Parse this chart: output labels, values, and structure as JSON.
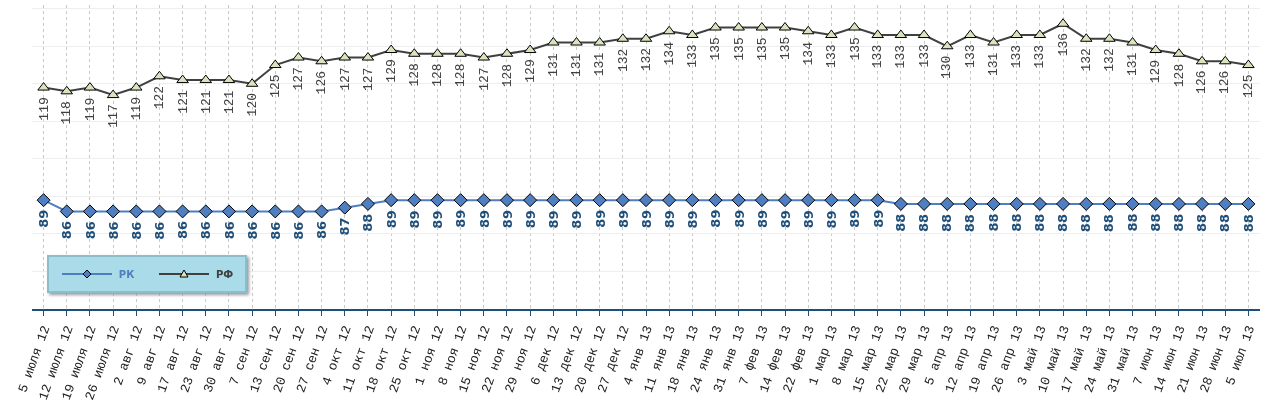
{
  "chart_data": {
    "type": "line",
    "categories": [
      "5 июля 12",
      "12 июля 12",
      "19 июля 12",
      "26 июля 12",
      "2 авг 12",
      "9 авг 12",
      "17 авг 12",
      "23 авг 12",
      "30 авг 12",
      "7 сен 12",
      "13 сен 12",
      "20 сен 12",
      "27 сен 12",
      "4 окт 12",
      "11 окт 12",
      "18 окт 12",
      "25 окт 12",
      "1 ноя 12",
      "8 ноя 12",
      "15 ноя 12",
      "22 ноя 12",
      "29 ноя 12",
      "6 дек 12",
      "13 дек 12",
      "20 дек 12",
      "27 дек 12",
      "4 янв 13",
      "11 янв 13",
      "18 янв 13",
      "24 янв 13",
      "31 янв 13",
      "7 фев 13",
      "14 фев 13",
      "22 фев 13",
      "1 мар 13",
      "8 мар 13",
      "15 мар 13",
      "22 мар 13",
      "29 мар 13",
      "5 апр 13",
      "12 апр 13",
      "19 апр 13",
      "26 апр 13",
      "3 май 13",
      "10 май 13",
      "17 май 13",
      "24 май 13",
      "31 май 13",
      "7 июн 13",
      "14 июн 13",
      "21 июн 13",
      "28 июн 13",
      "5 июл 13"
    ],
    "series": [
      {
        "name": "РК",
        "color": "#4f7fc0",
        "marker": "diamond",
        "values": [
          89,
          86,
          86,
          86,
          86,
          86,
          86,
          86,
          86,
          86,
          86,
          86,
          86,
          87,
          88,
          89,
          89,
          89,
          89,
          89,
          89,
          89,
          89,
          89,
          89,
          89,
          89,
          89,
          89,
          89,
          89,
          89,
          89,
          89,
          89,
          89,
          89,
          88,
          88,
          88,
          88,
          88,
          88,
          88,
          88,
          88,
          88,
          88,
          88,
          88,
          88,
          88,
          88
        ]
      },
      {
        "name": "РФ",
        "color": "#404040",
        "marker": "triangle",
        "values": [
          119,
          118,
          119,
          117,
          119,
          122,
          121,
          121,
          121,
          120,
          125,
          127,
          126,
          127,
          127,
          129,
          128,
          128,
          128,
          127,
          128,
          129,
          131,
          131,
          131,
          132,
          132,
          134,
          133,
          135,
          135,
          135,
          135,
          134,
          133,
          135,
          133,
          133,
          133,
          130,
          133,
          131,
          133,
          133,
          136,
          132,
          132,
          131,
          129,
          128,
          126,
          126,
          125
        ]
      }
    ],
    "ylim": [
      60,
      141
    ],
    "tick_labels": "x",
    "grid": true,
    "data_labels": true,
    "legend": "bottom left",
    "line_style": "solid"
  }
}
